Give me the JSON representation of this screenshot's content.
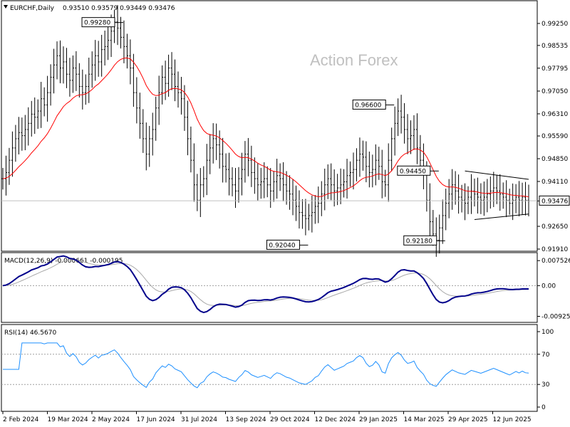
{
  "header": {
    "symbol": "EURCHF,Daily",
    "ohlc": "0.93510 0.93579 0.93449 0.93476"
  },
  "watermark": "Action Forex",
  "colors": {
    "bars": "#000000",
    "ma": "#ff0000",
    "macd": "#00008b",
    "signal": "#a9a9a9",
    "rsi": "#1e90ff",
    "trendlines": "#000000"
  },
  "chart_data": [
    {
      "type": "bar",
      "panel": "price",
      "title": "EURCHF,Daily",
      "price_axis_ticks": [
        "0.99250",
        "0.98535",
        "0.97795",
        "0.97050",
        "0.96310",
        "0.95590",
        "0.94850",
        "0.94110",
        "0.93476",
        "0.92650",
        "0.91910"
      ],
      "ylim": [
        0.9191,
        0.9955
      ],
      "last_price": "0.93476",
      "x_tick_labels": [
        "2 Feb 2024",
        "19 Mar 2024",
        "2 May 2024",
        "17 Jun 2024",
        "31 Jul 2024",
        "13 Sep 2024",
        "29 Oct 2024",
        "12 Dec 2024",
        "29 Jan 2025",
        "14 Mar 2025",
        "29 Apr 2025",
        "12 Jun 2025"
      ],
      "annotations": [
        {
          "text": "0.99280",
          "value": 0.9928
        },
        {
          "text": "0.92040",
          "value": 0.9204
        },
        {
          "text": "0.96600",
          "value": 0.966
        },
        {
          "text": "0.94450",
          "value": 0.9445
        },
        {
          "text": "0.92180",
          "value": 0.9218
        }
      ],
      "closes": [
        0.942,
        0.944,
        0.948,
        0.952,
        0.955,
        0.957,
        0.956,
        0.958,
        0.96,
        0.963,
        0.962,
        0.964,
        0.968,
        0.966,
        0.97,
        0.975,
        0.979,
        0.982,
        0.978,
        0.98,
        0.976,
        0.974,
        0.978,
        0.976,
        0.972,
        0.97,
        0.972,
        0.976,
        0.979,
        0.982,
        0.98,
        0.984,
        0.985,
        0.987,
        0.99,
        0.993,
        0.991,
        0.988,
        0.985,
        0.982,
        0.978,
        0.97,
        0.965,
        0.96,
        0.955,
        0.95,
        0.955,
        0.958,
        0.965,
        0.97,
        0.975,
        0.973,
        0.978,
        0.976,
        0.972,
        0.97,
        0.968,
        0.962,
        0.955,
        0.948,
        0.94,
        0.935,
        0.94,
        0.942,
        0.948,
        0.952,
        0.955,
        0.953,
        0.95,
        0.946,
        0.945,
        0.942,
        0.94,
        0.938,
        0.942,
        0.945,
        0.95,
        0.948,
        0.944,
        0.942,
        0.94,
        0.941,
        0.942,
        0.94,
        0.938,
        0.941,
        0.943,
        0.942,
        0.94,
        0.938,
        0.937,
        0.935,
        0.933,
        0.931,
        0.93,
        0.929,
        0.93,
        0.931,
        0.933,
        0.934,
        0.937,
        0.94,
        0.942,
        0.94,
        0.938,
        0.939,
        0.94,
        0.941,
        0.943,
        0.944,
        0.945,
        0.948,
        0.95,
        0.949,
        0.946,
        0.944,
        0.945,
        0.948,
        0.946,
        0.941,
        0.94,
        0.948,
        0.955,
        0.96,
        0.964,
        0.962,
        0.958,
        0.955,
        0.956,
        0.958,
        0.952,
        0.948,
        0.944,
        0.935,
        0.928,
        0.924,
        0.922,
        0.926,
        0.93,
        0.934,
        0.937,
        0.94,
        0.938,
        0.936,
        0.935,
        0.934,
        0.936,
        0.938,
        0.937,
        0.936,
        0.935,
        0.936,
        0.937,
        0.938,
        0.939,
        0.938,
        0.937,
        0.936,
        0.935,
        0.934,
        0.935,
        0.936,
        0.935,
        0.936,
        0.935,
        0.9348
      ]
    },
    {
      "type": "line",
      "panel": "macd",
      "title": "MACD(12,26,9) -0.000661 -0.000195",
      "ticks": [
        "0.007526",
        "0.00",
        "-0.009252"
      ],
      "ylim": [
        -0.01,
        0.008
      ]
    },
    {
      "type": "line",
      "panel": "rsi",
      "title": "RSI(14) 46.5670",
      "ticks": [
        "100",
        "70",
        "30",
        "0"
      ],
      "ylim": [
        0,
        100
      ],
      "levels": [
        70,
        30
      ]
    }
  ]
}
